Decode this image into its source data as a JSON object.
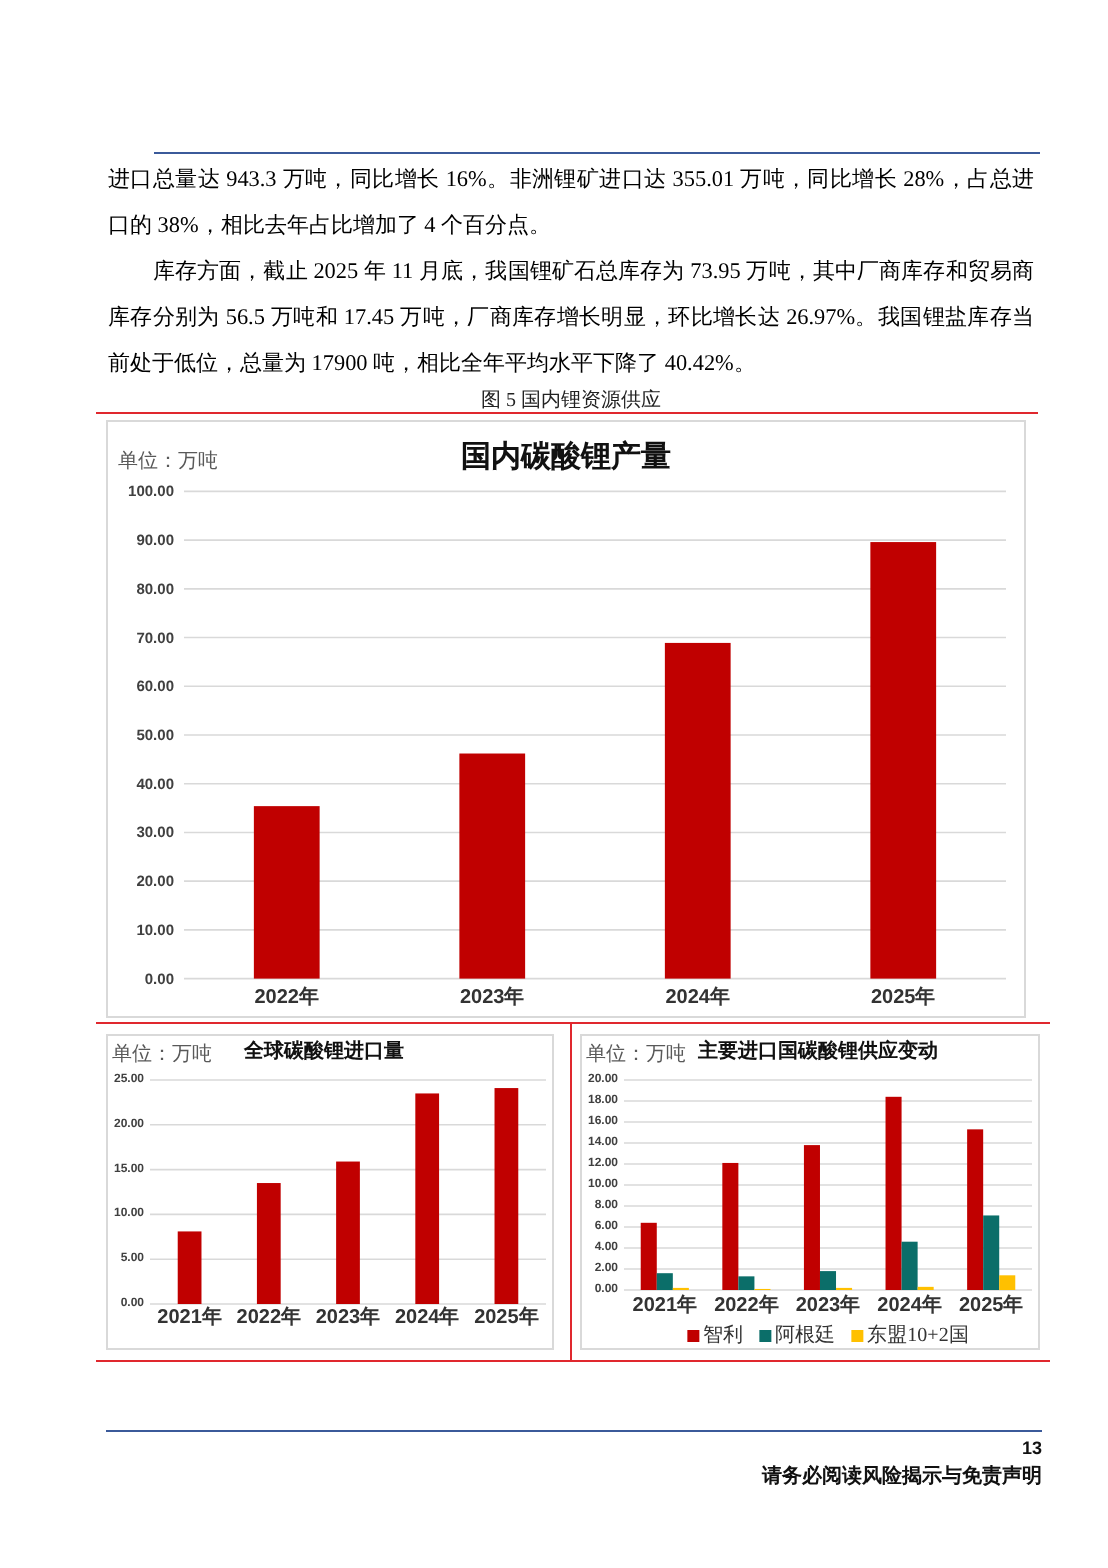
{
  "chart_data": [
    {
      "type": "other",
      "annotations": [
        "进口总量达 943.3 万吨，同比增长 16%。非洲锂矿进口达 355.01 万吨，同比增长 28%，占总进口的 38%，相比去年占比增加了 4 个百分点。",
        "库存方面，截止 2025 年 11 月底，我国锂矿石总库存为 73.95 万吨，其中厂商库存和贸易商库存分别为 56.5 万吨和 17.45 万吨，厂商库存增长明显，环比增长达 26.97%。我国锂盐库存当前处于低位，总量为 17900 吨，相比全年平均水平下降了 40.42%。",
        "图 5 国内锂资源供应"
      ]
    },
    {
      "type": "bar",
      "title": "国内碳酸锂产量",
      "ylabel": "单位：万吨",
      "categories": [
        "2022年",
        "2023年",
        "2024年",
        "2025年"
      ],
      "values": [
        35.4,
        46.2,
        68.9,
        89.6
      ],
      "color": "#c00000",
      "ylim": [
        0,
        100
      ],
      "yticks": [
        {
          "value": 0,
          "label": "0.00"
        },
        {
          "value": 10,
          "label": "10.00"
        },
        {
          "value": 20,
          "label": "20.00"
        },
        {
          "value": 30,
          "label": "30.00"
        },
        {
          "value": 40,
          "label": "40.00"
        },
        {
          "value": 50,
          "label": "50.00"
        },
        {
          "value": 60,
          "label": "60.00"
        },
        {
          "value": 70,
          "label": "70.00"
        },
        {
          "value": 80,
          "label": "80.00"
        },
        {
          "value": 90,
          "label": "90.00"
        },
        {
          "value": 100,
          "label": "100.00"
        }
      ],
      "grid": "y"
    },
    {
      "type": "bar",
      "title": "全球碳酸锂进口量",
      "ylabel": "单位：万吨",
      "categories": [
        "2021年",
        "2022年",
        "2023年",
        "2024年",
        "2025年"
      ],
      "values": [
        8.1,
        13.5,
        15.9,
        23.5,
        24.1
      ],
      "color": "#c00000",
      "ylim": [
        0,
        25
      ],
      "yticks": [
        {
          "value": 0,
          "label": "0.00"
        },
        {
          "value": 5,
          "label": "5.00"
        },
        {
          "value": 10,
          "label": "10.00"
        },
        {
          "value": 15,
          "label": "15.00"
        },
        {
          "value": 20,
          "label": "20.00"
        },
        {
          "value": 25,
          "label": "25.00"
        }
      ],
      "grid": "y"
    },
    {
      "type": "bar",
      "title": "主要进口国碳酸锂供应变动",
      "ylabel": "单位：万吨",
      "categories": [
        "2021年",
        "2022年",
        "2023年",
        "2024年",
        "2025年"
      ],
      "series": [
        {
          "name": "智利",
          "color": "#c00000",
          "values": [
            6.4,
            12.1,
            13.8,
            18.4,
            15.3
          ]
        },
        {
          "name": "阿根廷",
          "color": "#0b6e69",
          "values": [
            1.6,
            1.3,
            1.8,
            4.6,
            7.1
          ]
        },
        {
          "name": "东盟10+2国",
          "color": "#ffc000",
          "values": [
            0.2,
            0.1,
            0.2,
            0.3,
            1.4
          ]
        }
      ],
      "ylim": [
        0,
        20
      ],
      "yticks": [
        {
          "value": 0,
          "label": "0.00"
        },
        {
          "value": 2,
          "label": "2.00"
        },
        {
          "value": 4,
          "label": "4.00"
        },
        {
          "value": 6,
          "label": "6.00"
        },
        {
          "value": 8,
          "label": "8.00"
        },
        {
          "value": 10,
          "label": "10.00"
        },
        {
          "value": 12,
          "label": "12.00"
        },
        {
          "value": 14,
          "label": "14.00"
        },
        {
          "value": 16,
          "label": "16.00"
        },
        {
          "value": 18,
          "label": "18.00"
        },
        {
          "value": 20,
          "label": "20.00"
        }
      ],
      "grid": "y",
      "legend": "bottom"
    },
    {
      "type": "other",
      "annotations": [
        "13",
        "请务必阅读风险揭示与免责声明"
      ]
    }
  ]
}
